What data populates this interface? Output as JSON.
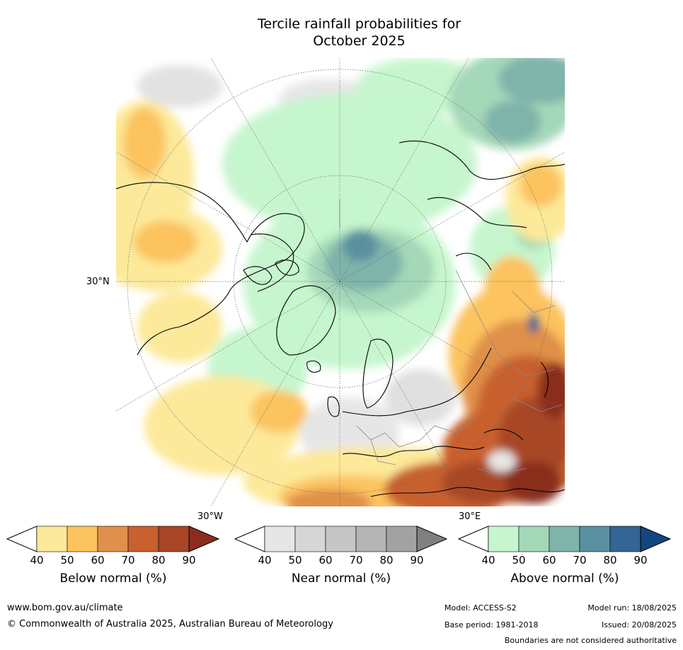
{
  "title": {
    "line1": "Tercile rainfall probabilities for",
    "line2": "October 2025"
  },
  "map": {
    "lat_label": "30°N",
    "lon_label_west": "30°W",
    "lon_label_east": "30°E",
    "colors": {
      "land_outline": "#000000",
      "border": "#888888",
      "graticule": "#666666"
    }
  },
  "colorbars": [
    {
      "id": "below",
      "title": "Below normal (%)",
      "ticks": [
        "40",
        "50",
        "60",
        "70",
        "80",
        "90"
      ],
      "colors": [
        "#ffffff",
        "#fde99a",
        "#fcc35f",
        "#e0904a",
        "#c8602f",
        "#a84626",
        "#8a2d1d"
      ]
    },
    {
      "id": "near",
      "title": "Near normal (%)",
      "ticks": [
        "40",
        "50",
        "60",
        "70",
        "80",
        "90"
      ],
      "colors": [
        "#ffffff",
        "#e6e6e6",
        "#d6d6d6",
        "#c6c6c6",
        "#b4b4b4",
        "#a2a2a2",
        "#808080"
      ]
    },
    {
      "id": "above",
      "title": "Above normal (%)",
      "ticks": [
        "40",
        "50",
        "60",
        "70",
        "80",
        "90"
      ],
      "colors": [
        "#ffffff",
        "#c6f6ce",
        "#a4d8b8",
        "#7fb4aa",
        "#5a90a0",
        "#336595",
        "#13467e"
      ]
    }
  ],
  "footer": {
    "website": "www.bom.gov.au/climate",
    "copyright": "© Commonwealth of Australia 2025, Australian Bureau of Meteorology",
    "model": "Model: ACCESS-S2",
    "base_period": "Base period: 1981-2018",
    "model_run": "Model run: 18/08/2025",
    "issued": "Issued: 20/08/2025",
    "disclaimer": "Boundaries are not considered authoritative"
  }
}
